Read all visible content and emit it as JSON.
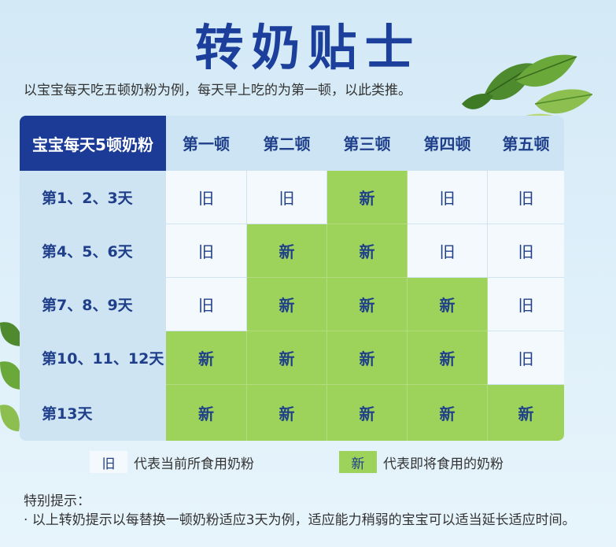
{
  "title": "转奶贴士",
  "intro": "以宝宝每天吃五顿奶粉为例，每天早上吃的为第一顿，以此类推。",
  "table": {
    "corner": "宝宝每天5顿奶粉",
    "columns": [
      "第一顿",
      "第二顿",
      "第三顿",
      "第四顿",
      "第五顿"
    ],
    "rows": [
      {
        "label": "第1、2、3天",
        "cells": [
          "旧",
          "旧",
          "新",
          "旧",
          "旧"
        ]
      },
      {
        "label": "第4、5、6天",
        "cells": [
          "旧",
          "新",
          "新",
          "旧",
          "旧"
        ]
      },
      {
        "label": "第7、8、9天",
        "cells": [
          "旧",
          "新",
          "新",
          "新",
          "旧"
        ]
      },
      {
        "label": "第10、11、12天",
        "cells": [
          "新",
          "新",
          "新",
          "新",
          "旧"
        ]
      },
      {
        "label": "第13天",
        "cells": [
          "新",
          "新",
          "新",
          "新",
          "新"
        ]
      }
    ]
  },
  "legend": {
    "old_symbol": "旧",
    "old_text": "代表当前所食用奶粉",
    "new_symbol": "新",
    "new_text": "代表即将食用的奶粉"
  },
  "tips": {
    "title": "特别提示：",
    "body": "· 以上转奶提示以每替换一顿奶粉适应3天为例，适应能力稍弱的宝宝可以适当延长适应时间。"
  },
  "colors": {
    "title": "#1b3f9b",
    "header_dark": "#1c3b96",
    "new_green": "#9dd35a",
    "old_light": "#f4f9fd"
  },
  "icons": [
    "leaf-decoration-icon"
  ]
}
